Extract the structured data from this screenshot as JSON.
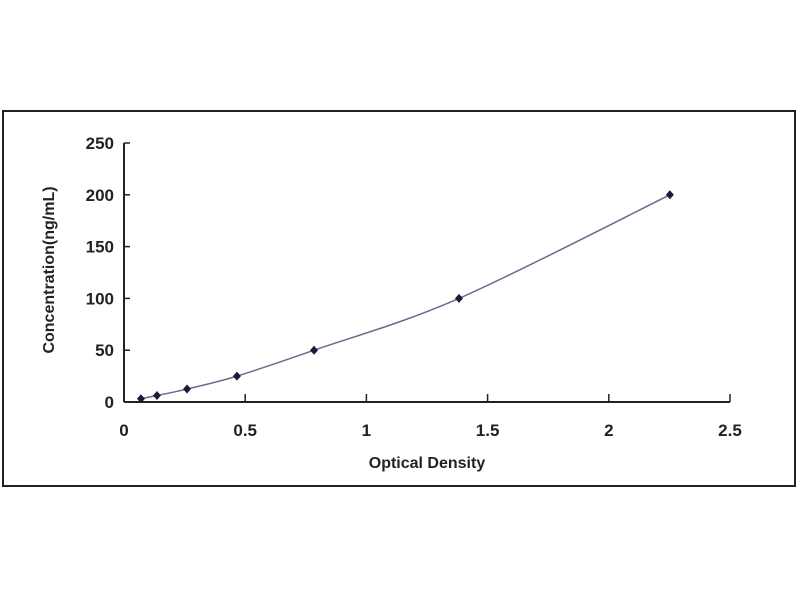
{
  "chart_data": {
    "type": "scatter",
    "title": "",
    "xlabel": "Optical Density",
    "ylabel": "Concentration(ng/mL)",
    "xlim": [
      0,
      2.5
    ],
    "ylim": [
      0,
      250
    ],
    "xticks": [
      "0",
      "0.5",
      "1",
      "1.5",
      "2",
      "2.5"
    ],
    "yticks": [
      "0",
      "50",
      "100",
      "150",
      "200",
      "250"
    ],
    "grid": false,
    "legend": "none",
    "trendline": "smooth curve through points",
    "series": [
      {
        "x": [
          0.07,
          0.136,
          0.26,
          0.466,
          0.784,
          1.382,
          2.252
        ],
        "y": [
          3.12,
          6.25,
          12.5,
          25,
          50,
          100,
          200
        ]
      }
    ],
    "colors": {
      "marker": "#1a1a3a",
      "line": "#6a6a8a",
      "axis": "#222222"
    }
  }
}
